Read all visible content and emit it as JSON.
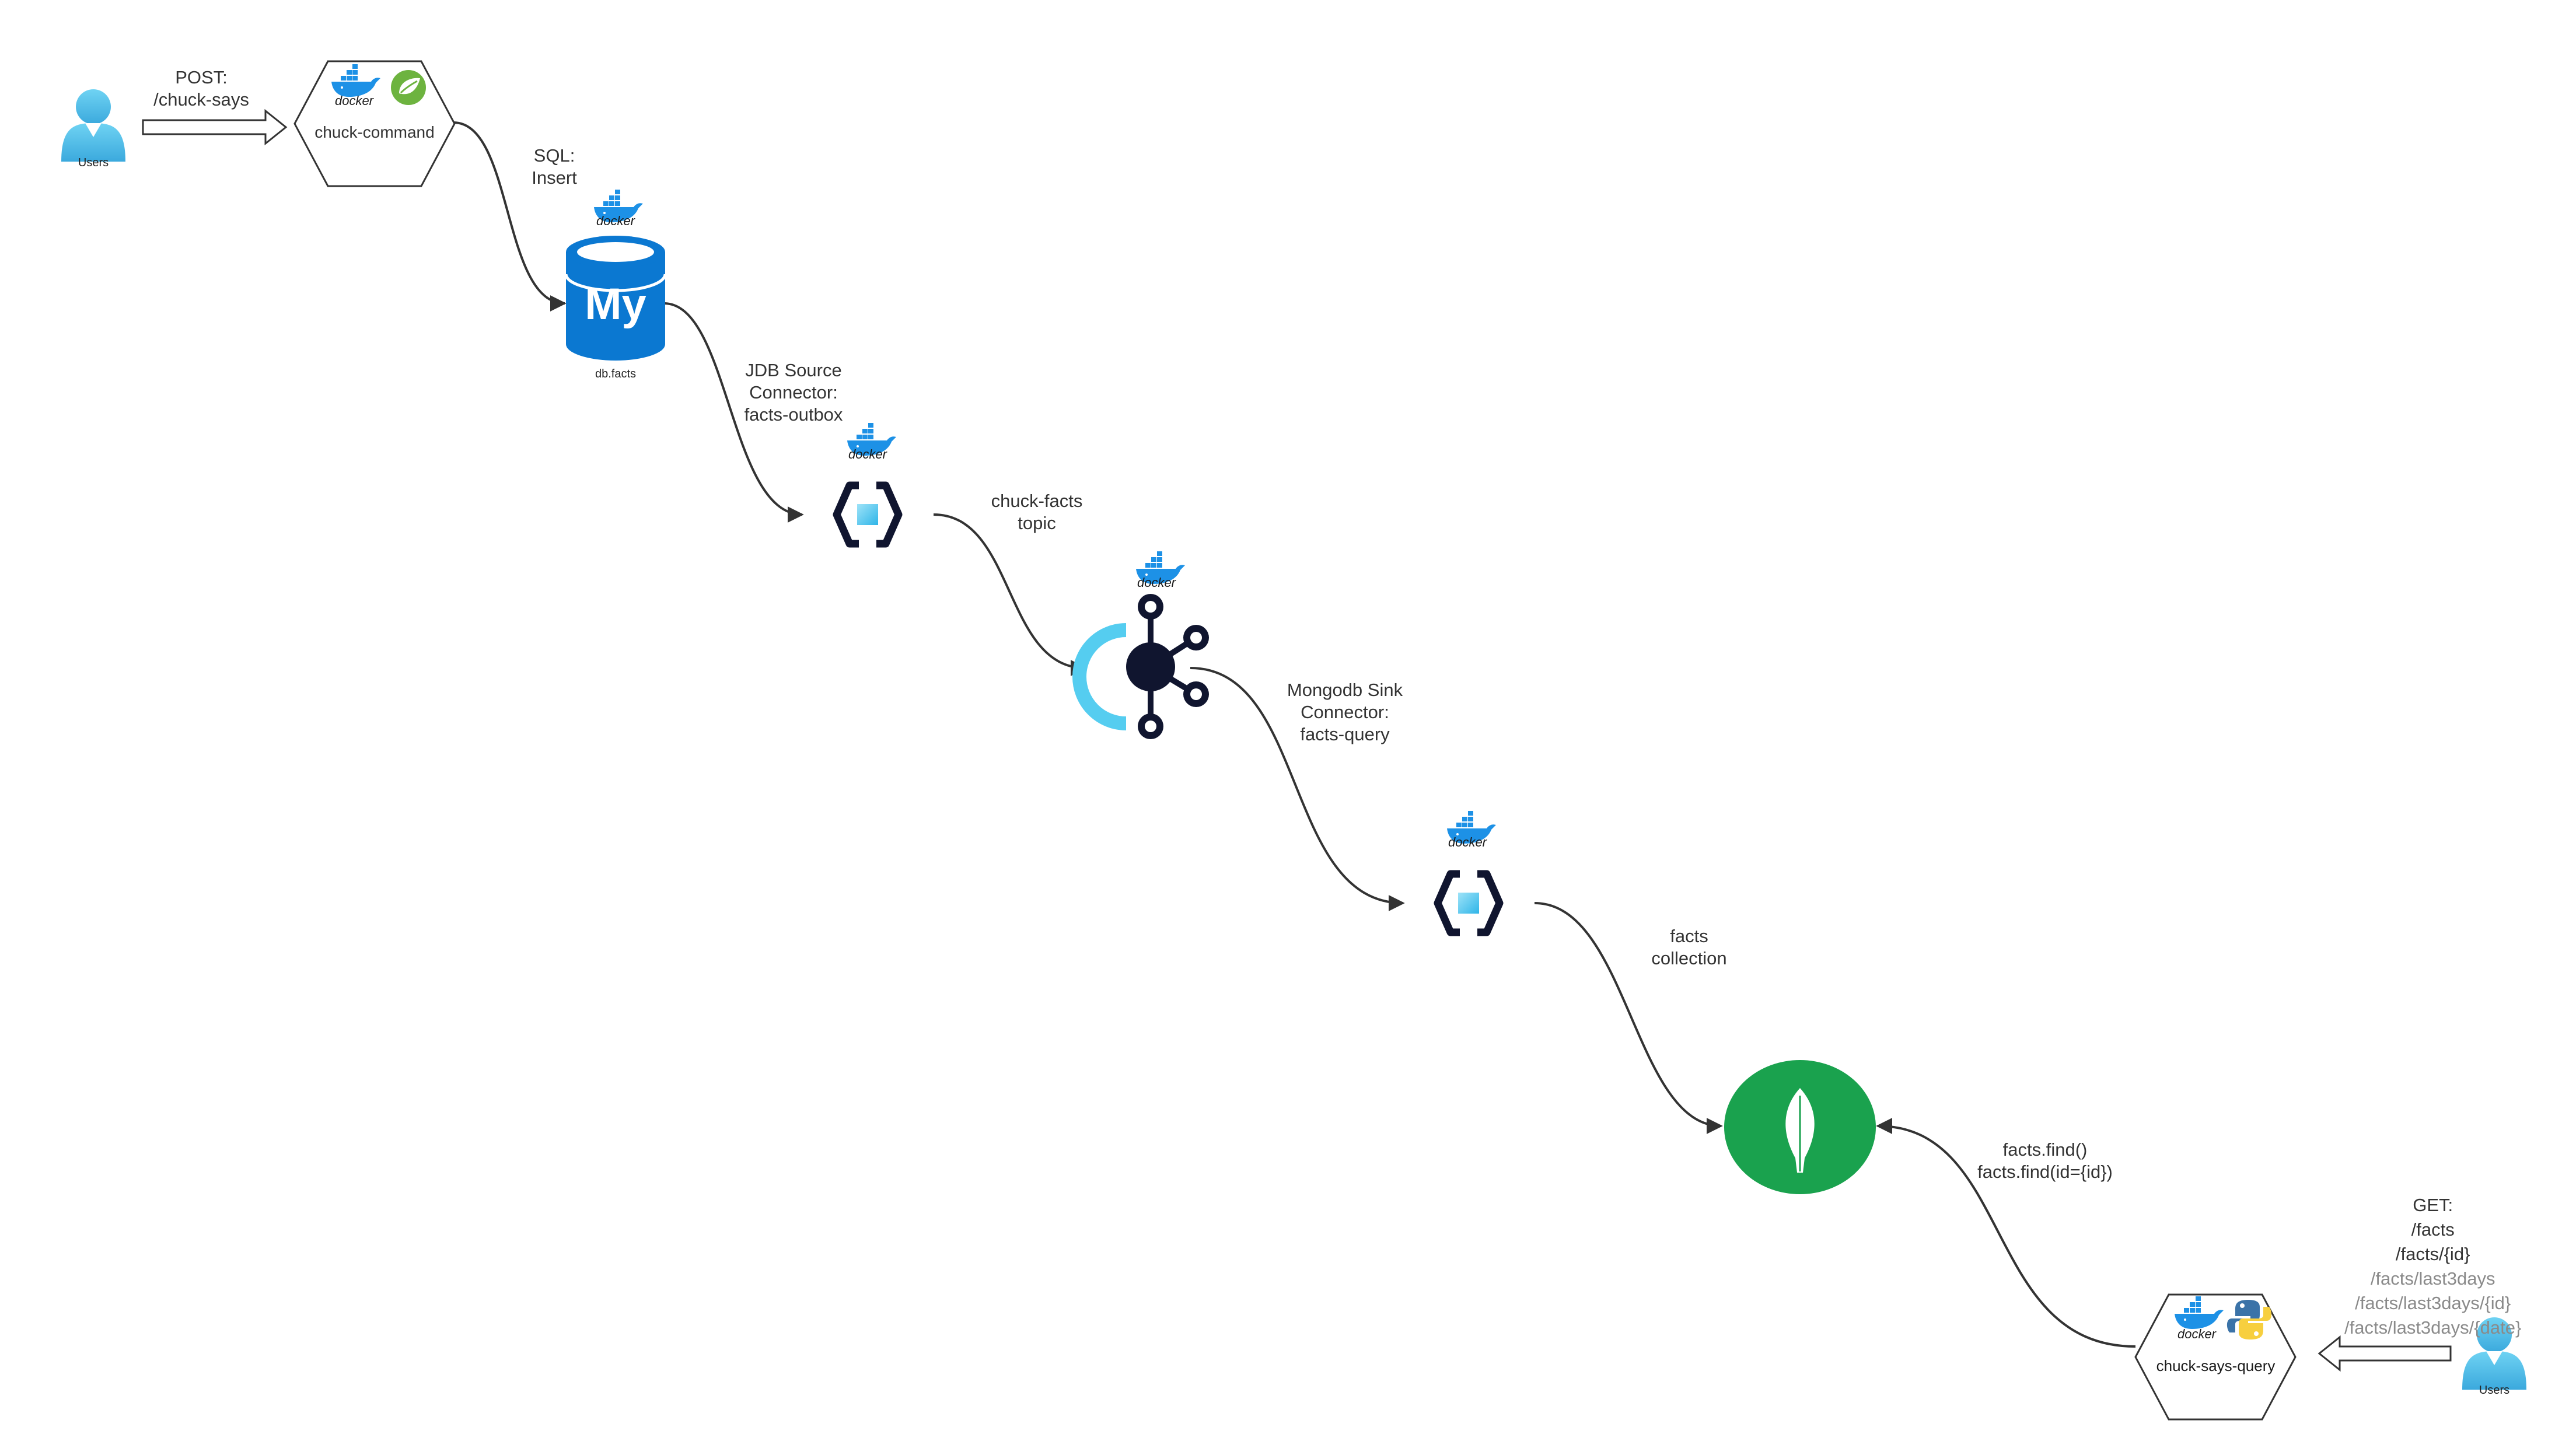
{
  "colors": {
    "line": "#333333",
    "user": "#5fcbef",
    "mysql_blue": "#0b78d1",
    "mongo_green": "#1aa24e",
    "connector_dark": "#10152f",
    "connector_inner": "#4fc8ee",
    "kafka_dark": "#10152f",
    "kafka_arc": "#55cdf0",
    "docker_blue": "#1d91e6",
    "spring_green": "#6db33f",
    "python_blue": "#3b73a8",
    "python_yellow": "#f7cf3f"
  },
  "users_left": {
    "label": "Users",
    "icon": "user-icon"
  },
  "users_right": {
    "label": "Users",
    "icon": "user-icon"
  },
  "post_label": {
    "line1": "POST:",
    "line2": "/chuck-says"
  },
  "chuck_command": {
    "label": "chuck-command",
    "badges": [
      "docker",
      "spring"
    ],
    "docker_text": "docker"
  },
  "sql_label": {
    "line1": "SQL:",
    "line2": "Insert"
  },
  "mysql": {
    "label": "db.facts",
    "logo_text": "My",
    "docker_text": "docker"
  },
  "jdbc_label": {
    "line1": "JDB Source",
    "line2": "Connector:",
    "line3": "facts-outbox"
  },
  "connector_source": {
    "docker_text": "docker",
    "icon": "kafka-connector-icon"
  },
  "topic_label": {
    "line1": "chuck-facts",
    "line2": "topic"
  },
  "kafka": {
    "docker_text": "docker",
    "icon": "kafka-icon"
  },
  "sink_label": {
    "line1": "Mongodb Sink",
    "line2": "Connector:",
    "line3": "facts-query"
  },
  "connector_sink": {
    "docker_text": "docker",
    "icon": "kafka-connector-icon"
  },
  "collection_label": {
    "line1": "facts",
    "line2": "collection"
  },
  "mongodb": {
    "icon": "mongodb-leaf-icon"
  },
  "find_label": {
    "line1": "facts.find()",
    "line2": "facts.find(id={id})"
  },
  "get_routes": {
    "line1": "GET:",
    "line2": "/facts",
    "line3": "/facts/{id}",
    "line4": "/facts/last3days",
    "line5": "/facts/last3days/{id}",
    "line6": "/facts/last3days/{date}"
  },
  "chuck_says_query": {
    "label": "chuck-says-query",
    "badges": [
      "docker",
      "python"
    ],
    "docker_text": "docker"
  }
}
